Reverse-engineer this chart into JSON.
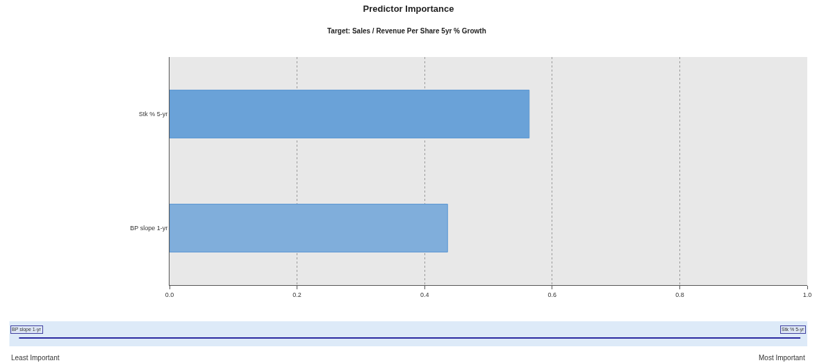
{
  "chart_data": {
    "type": "bar",
    "orientation": "horizontal",
    "title": "Predictor Importance",
    "subtitle": "Target: Sales / Revenue Per Share 5yr % Growth",
    "categories": [
      "Stk % 5-yr",
      "BP slope 1-yr"
    ],
    "values": [
      0.564,
      0.436
    ],
    "colors": [
      "#6aa2d8",
      "#80aedb"
    ],
    "xlim": [
      0,
      1
    ],
    "xticks": [
      {
        "value": 0,
        "label": "0.0"
      },
      0.2,
      0.4,
      0.6,
      0.8,
      {
        "value": 1,
        "label": "1.0"
      }
    ],
    "grid": "x",
    "legend": false,
    "annotations": [
      "BP slope 1-yr",
      "Stk % 5-yr",
      "Least Important",
      "Most Important"
    ]
  }
}
